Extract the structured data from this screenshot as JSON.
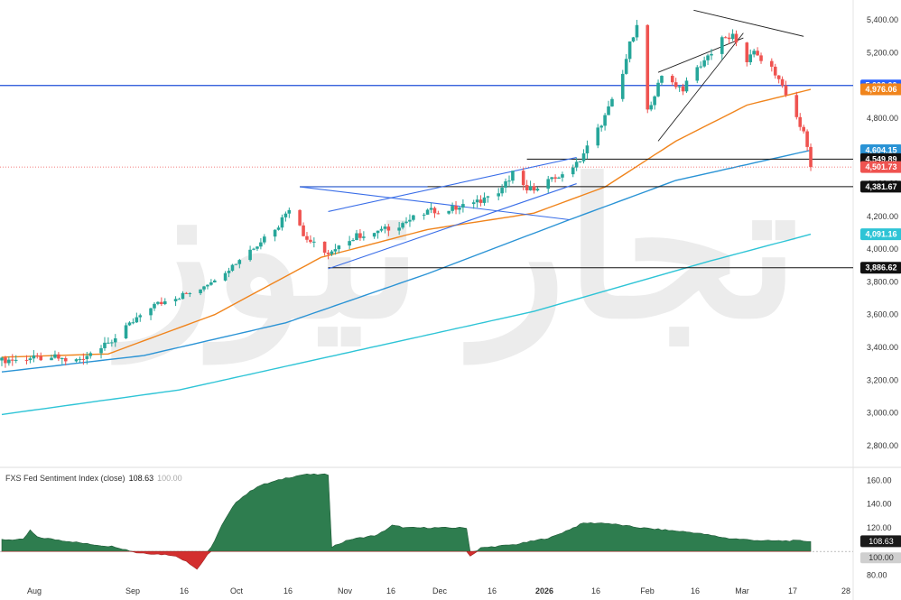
{
  "chart_data": [
    {
      "type": "candlestick",
      "title": "",
      "colors": {
        "up": "#26a69a",
        "down": "#ef5350",
        "ema_fast": "#f0841c",
        "ema_mid": "#2a93d5",
        "ema_slow": "#2ec4d6",
        "hline": "#1f4fd8",
        "level": "#111111"
      },
      "y_ticks": [
        2800,
        3000,
        3200,
        3400,
        3600,
        3800,
        4000,
        4200,
        4400,
        4600,
        4800,
        5000,
        5200,
        5400
      ],
      "y_tick_labels": [
        "2,800.00",
        "3,000.00",
        "3,200.00",
        "3,400.00",
        "3,600.00",
        "3,800.00",
        "4,000.00",
        "4,200.00",
        "4,400.00",
        "4,600.00",
        "4,800.00",
        "5,000.00",
        "5,200.00",
        "5,400.00"
      ],
      "x_labels": [
        "Aug",
        "Sep",
        "16",
        "Oct",
        "16",
        "Nov",
        "16",
        "Dec",
        "16",
        "2026",
        "16",
        "Feb",
        "16",
        "Mar",
        "17",
        "28"
      ],
      "price_labels": [
        {
          "text": "5,000.00",
          "value": 5000.0,
          "color": "#2962ff"
        },
        {
          "text": "4,976.06",
          "value": 4976.06,
          "color": "#f0841c"
        },
        {
          "text": "4,604.15",
          "value": 4604.15,
          "color": "#2a93d5"
        },
        {
          "text": "4,549.89",
          "value": 4549.89,
          "color": "#111111"
        },
        {
          "text": "4,501.73",
          "value": 4501.73,
          "color": "#ef5350"
        },
        {
          "text": "4,381.67",
          "value": 4381.67,
          "color": "#111111"
        },
        {
          "text": "4,091.16",
          "value": 4091.16,
          "color": "#2ec4d6"
        },
        {
          "text": "3,886.62",
          "value": 3886.62,
          "color": "#111111"
        }
      ],
      "horizontal_levels": [
        5000.0,
        4549.89,
        4381.67,
        3886.62
      ],
      "last_close": 4501.73,
      "anchors_close": [
        {
          "day": 0,
          "v": 3320
        },
        {
          "day": 15,
          "v": 3340
        },
        {
          "day": 20,
          "v": 3310
        },
        {
          "day": 30,
          "v": 3420
        },
        {
          "day": 42,
          "v": 3650
        },
        {
          "day": 55,
          "v": 3750
        },
        {
          "day": 65,
          "v": 3900
        },
        {
          "day": 78,
          "v": 4150
        },
        {
          "day": 82,
          "v": 4290
        },
        {
          "day": 85,
          "v": 4080
        },
        {
          "day": 92,
          "v": 3960
        },
        {
          "day": 100,
          "v": 4080
        },
        {
          "day": 110,
          "v": 4130
        },
        {
          "day": 120,
          "v": 4230
        },
        {
          "day": 128,
          "v": 4250
        },
        {
          "day": 140,
          "v": 4330
        },
        {
          "day": 144,
          "v": 4470
        },
        {
          "day": 148,
          "v": 4360
        },
        {
          "day": 156,
          "v": 4430
        },
        {
          "day": 163,
          "v": 4550
        },
        {
          "day": 170,
          "v": 4810
        },
        {
          "day": 174,
          "v": 5000
        },
        {
          "day": 177,
          "v": 5250
        },
        {
          "day": 179,
          "v": 5350
        },
        {
          "day": 181,
          "v": 4780
        },
        {
          "day": 183,
          "v": 4900
        },
        {
          "day": 186,
          "v": 5050
        },
        {
          "day": 192,
          "v": 4980
        },
        {
          "day": 197,
          "v": 5130
        },
        {
          "day": 203,
          "v": 5280
        },
        {
          "day": 206,
          "v": 5300
        },
        {
          "day": 209,
          "v": 5130
        },
        {
          "day": 212,
          "v": 5200
        },
        {
          "day": 217,
          "v": 5100
        },
        {
          "day": 220,
          "v": 5000
        },
        {
          "day": 223,
          "v": 4850
        },
        {
          "day": 226,
          "v": 4720
        },
        {
          "day": 228,
          "v": 4501.73
        }
      ],
      "ema_fast_anchors": [
        {
          "day": 0,
          "v": 3340
        },
        {
          "day": 30,
          "v": 3360
        },
        {
          "day": 60,
          "v": 3600
        },
        {
          "day": 90,
          "v": 3950
        },
        {
          "day": 120,
          "v": 4120
        },
        {
          "day": 150,
          "v": 4220
        },
        {
          "day": 170,
          "v": 4380
        },
        {
          "day": 190,
          "v": 4660
        },
        {
          "day": 210,
          "v": 4880
        },
        {
          "day": 228,
          "v": 4976.06
        }
      ],
      "ema_mid_anchors": [
        {
          "day": 0,
          "v": 3250
        },
        {
          "day": 40,
          "v": 3350
        },
        {
          "day": 80,
          "v": 3550
        },
        {
          "day": 120,
          "v": 3850
        },
        {
          "day": 160,
          "v": 4180
        },
        {
          "day": 190,
          "v": 4420
        },
        {
          "day": 228,
          "v": 4604.15
        }
      ],
      "ema_slow_anchors": [
        {
          "day": 0,
          "v": 2990
        },
        {
          "day": 50,
          "v": 3140
        },
        {
          "day": 100,
          "v": 3380
        },
        {
          "day": 150,
          "v": 3620
        },
        {
          "day": 200,
          "v": 3930
        },
        {
          "day": 228,
          "v": 4091.16
        }
      ],
      "y_range": [
        2700,
        5500
      ]
    },
    {
      "type": "area",
      "title": "FXS Fed Sentiment Index (close)",
      "value": 108.63,
      "baseline": 100.0,
      "value_text": "108.63",
      "baseline_text": "100.00",
      "y_ticks": [
        80,
        100,
        120,
        140,
        160
      ],
      "y_tick_labels": [
        "80.00",
        "100.00",
        "120.00",
        "140.00",
        "160.00"
      ],
      "y_range": [
        75,
        168
      ],
      "colors": {
        "pos": "#2e7d4f",
        "neg": "#d32f2f"
      },
      "anchors": [
        {
          "day": 0,
          "v": 110
        },
        {
          "day": 6,
          "v": 110
        },
        {
          "day": 8,
          "v": 118
        },
        {
          "day": 10,
          "v": 112
        },
        {
          "day": 18,
          "v": 109
        },
        {
          "day": 25,
          "v": 106
        },
        {
          "day": 32,
          "v": 104
        },
        {
          "day": 38,
          "v": 99
        },
        {
          "day": 48,
          "v": 97
        },
        {
          "day": 52,
          "v": 92
        },
        {
          "day": 55,
          "v": 85
        },
        {
          "day": 58,
          "v": 97
        },
        {
          "day": 62,
          "v": 122
        },
        {
          "day": 66,
          "v": 142
        },
        {
          "day": 72,
          "v": 155
        },
        {
          "day": 80,
          "v": 162
        },
        {
          "day": 85,
          "v": 165
        },
        {
          "day": 92,
          "v": 165
        },
        {
          "day": 93,
          "v": 104
        },
        {
          "day": 98,
          "v": 110
        },
        {
          "day": 106,
          "v": 114
        },
        {
          "day": 110,
          "v": 122
        },
        {
          "day": 114,
          "v": 120
        },
        {
          "day": 120,
          "v": 120
        },
        {
          "day": 131,
          "v": 120
        },
        {
          "day": 132,
          "v": 96
        },
        {
          "day": 135,
          "v": 103
        },
        {
          "day": 145,
          "v": 106
        },
        {
          "day": 155,
          "v": 112
        },
        {
          "day": 164,
          "v": 124
        },
        {
          "day": 170,
          "v": 124
        },
        {
          "day": 180,
          "v": 120
        },
        {
          "day": 195,
          "v": 116
        },
        {
          "day": 205,
          "v": 111
        },
        {
          "day": 215,
          "v": 109
        },
        {
          "day": 225,
          "v": 109
        },
        {
          "day": 228,
          "v": 108.63
        }
      ]
    }
  ],
  "watermark": "تجار نيوز"
}
